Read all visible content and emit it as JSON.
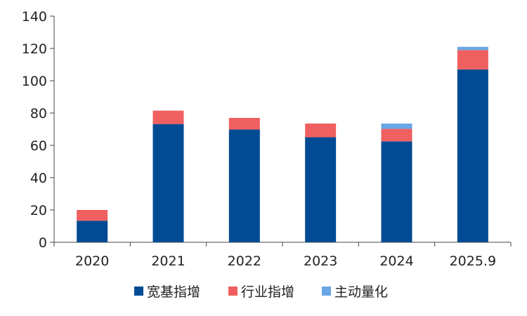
{
  "chart_data": {
    "type": "bar",
    "stacked": true,
    "categories": [
      "2020",
      "2021",
      "2022",
      "2023",
      "2024",
      "2025.9"
    ],
    "series": [
      {
        "name": "宽基指增",
        "color": "#004b93",
        "values": [
          13.3,
          73.2,
          69.8,
          65.0,
          62.5,
          107.0
        ]
      },
      {
        "name": "行业指增",
        "color": "#f06060",
        "values": [
          6.7,
          8.3,
          7.2,
          8.5,
          7.7,
          12.0
        ]
      },
      {
        "name": "主动量化",
        "color": "#6aa6e6",
        "values": [
          0,
          0,
          0,
          0,
          3.3,
          2.0
        ]
      }
    ],
    "ylim": [
      0,
      140
    ],
    "yticks": [
      0,
      20,
      40,
      60,
      80,
      100,
      120,
      140
    ],
    "grid": false,
    "legend_position": "bottom"
  }
}
